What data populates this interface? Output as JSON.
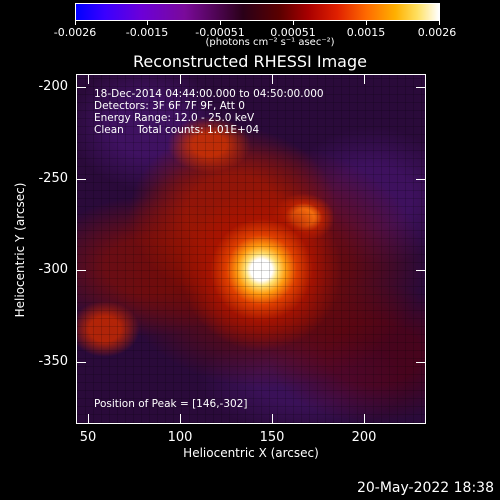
{
  "colorbar": {
    "ticks": [
      "-0.0026",
      "-0.0015",
      "-0.00051",
      "0.00051",
      "0.0015",
      "0.0026"
    ],
    "units_text": "(photons cm⁻² s⁻¹ asec⁻²)",
    "colors": [
      "#0000ff",
      "#6c00d8",
      "#2a0018",
      "#a80000",
      "#ff6a00",
      "#ffffff"
    ]
  },
  "title": "Reconstructed RHESSI Image",
  "info": {
    "line1": "18-Dec-2014 04:44:00.000 to 04:50:00.000",
    "line2": "Detectors: 3F 6F 7F 9F, Att 0",
    "line3": "Energy Range: 12.0 - 25.0 keV",
    "line4": "Clean    Total counts: 1.01E+04",
    "peak": "Position of Peak = [146,-302]"
  },
  "axes": {
    "x_ticks": [
      "50",
      "100",
      "150",
      "200"
    ],
    "y_ticks": [
      "-200",
      "-250",
      "-300",
      "-350"
    ],
    "xlabel": "Heliocentric X (arcsec)",
    "ylabel": "Heliocentric Y (arcsec)",
    "x_range": [
      45,
      235
    ],
    "y_range": [
      -383,
      -193
    ]
  },
  "footer_date": "20-May-2022 18:38"
}
